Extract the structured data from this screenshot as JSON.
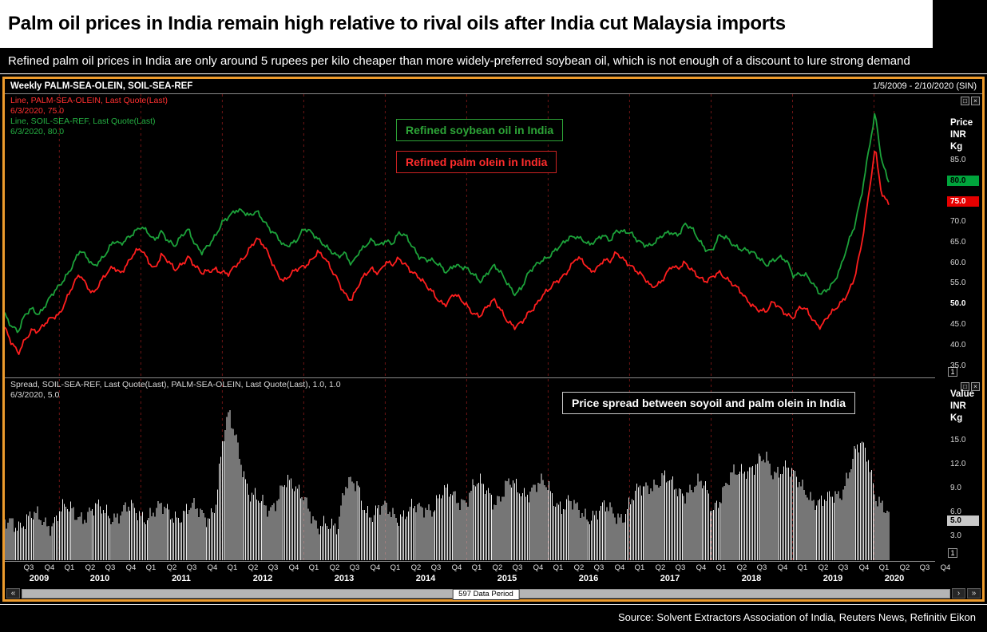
{
  "page": {
    "title": "Palm oil prices in India remain high relative to rival oils after India cut Malaysia imports",
    "subtitle": "Refined palm oil prices in India are only around 5 rupees per kilo cheaper than more widely-preferred soybean oil, which is not enough of a discount to lure strong demand",
    "footer": "Source: Solvent Extractors Association of India, Reuters News, Refinitiv Eikon"
  },
  "chart_header": {
    "left": "Weekly PALM-SEA-OLEIN, SOIL-SEA-REF",
    "right": "1/5/2009 - 2/10/2020 (SIN)"
  },
  "icons": {
    "maximize": "□",
    "close": "×"
  },
  "top_pane": {
    "legend": [
      "Line, PALM-SEA-OLEIN, Last Quote(Last)",
      "6/3/2020, 75.0",
      "Line, SOIL-SEA-REF, Last Quote(Last)",
      "6/3/2020, 80.0"
    ],
    "callout_soy": "Refined soybean oil in India",
    "callout_palm": "Refined palm olein in India",
    "axis_title": [
      "Price",
      "INR",
      "Kg"
    ],
    "pane_number": "1"
  },
  "bottom_pane": {
    "legend": [
      "Spread, SOIL-SEA-REF, Last Quote(Last), PALM-SEA-OLEIN, Last Quote(Last),  1.0, 1.0",
      "6/3/2020, 5.0"
    ],
    "callout": "Price spread between soyoil and palm olein in India",
    "axis_title": [
      "Value",
      "INR",
      "Kg"
    ],
    "pane_number": "1"
  },
  "scrollbar": {
    "label": "597 Data Period",
    "left_button": "«",
    "right_button": "›",
    "end_button": "»"
  },
  "colors": {
    "frame": "#ED9B2D",
    "grid": "#6E1414",
    "separator": "#8a8a8a",
    "palm_red": "#FF1E1E",
    "soy_green": "#1CA23A",
    "spread_bars": "#EDEDED"
  },
  "chart_data": {
    "type": "line+bar",
    "title": "Weekly PALM-SEA-OLEIN vs SOIL-SEA-REF, Price INR/Kg, 1/5/2009 - 2/10/2020",
    "x": {
      "unit": "decimal years, weekly frequency (monthly anchor values below, interpolated to weekly)",
      "axis_range": [
        2009.33,
        2020.75
      ],
      "data_end": 2020.18,
      "monthly_start": "2009-05",
      "monthly_end": "2020-03",
      "gridline_years": [
        2010,
        2011,
        2012,
        2013,
        2014,
        2015,
        2016,
        2017,
        2018,
        2019,
        2020
      ],
      "quarter_labels": [
        "Q3",
        "Q4",
        "Q1",
        "Q2",
        "Q3",
        "Q4",
        "Q1",
        "Q2",
        "Q3",
        "Q4",
        "Q1",
        "Q2",
        "Q3",
        "Q4",
        "Q1",
        "Q2",
        "Q3",
        "Q4",
        "Q1",
        "Q2",
        "Q3",
        "Q4",
        "Q1",
        "Q2",
        "Q3",
        "Q4",
        "Q1",
        "Q2",
        "Q3",
        "Q4",
        "Q1",
        "Q2",
        "Q3",
        "Q4",
        "Q1",
        "Q2",
        "Q3",
        "Q4",
        "Q1",
        "Q2",
        "Q3",
        "Q4",
        "Q1",
        "Q2",
        "Q3",
        "Q4"
      ],
      "year_labels": [
        "2009",
        "2010",
        "2011",
        "2012",
        "2013",
        "2014",
        "2015",
        "2016",
        "2017",
        "2018",
        "2019",
        "2020"
      ]
    },
    "panes": [
      {
        "type": "line",
        "ylabel": "Price INR Kg",
        "ylim": [
          32,
          101
        ],
        "yticks": [
          35,
          40,
          45,
          50,
          55,
          60,
          65,
          70,
          75,
          80,
          85
        ],
        "badges": [
          {
            "label": "80.0",
            "value": 80,
            "bg": "#00A43C",
            "fg": "#000000"
          },
          {
            "label": "75.0",
            "value": 75,
            "bg": "#E60000",
            "fg": "#FFFFFF"
          }
        ],
        "series": [
          {
            "name": "PALM-SEA-OLEIN (Refined palm olein in India)",
            "color": "#FF1E1E",
            "last": 75.0,
            "monthly_values": [
              44,
              40,
              38,
              42,
              44,
              43,
              45,
              47,
              48,
              51,
              54,
              57,
              55,
              53,
              55,
              57,
              59,
              58,
              60,
              62,
              63,
              61,
              59,
              62,
              60,
              58,
              60,
              62,
              59,
              57,
              58,
              59,
              58,
              57,
              59,
              61,
              64,
              66,
              64,
              61,
              58,
              56,
              57,
              58,
              59,
              61,
              63,
              61,
              58,
              56,
              53,
              51,
              54,
              57,
              59,
              58,
              60,
              59,
              61,
              60,
              58,
              56,
              54,
              53,
              51,
              50,
              52,
              51,
              50,
              48,
              47,
              49,
              51,
              49,
              46,
              44,
              45,
              48,
              50,
              52,
              53,
              55,
              57,
              59,
              61,
              60,
              58,
              59,
              61,
              60,
              62,
              61,
              60,
              58,
              56,
              54,
              55,
              57,
              59,
              58,
              60,
              59,
              57,
              55,
              56,
              58,
              57,
              55,
              53,
              51,
              50,
              49,
              48,
              50,
              49,
              48,
              47,
              49,
              48,
              46,
              45,
              47,
              48,
              50,
              53,
              57,
              64,
              75,
              88,
              77,
              75
            ]
          },
          {
            "name": "SOIL-SEA-REF (Refined soybean oil in India)",
            "color": "#1CA23A",
            "last": 80.0,
            "monthly_values": [
              48,
              45,
              43,
              47,
              49,
              48,
              50,
              52,
              54,
              57,
              60,
              63,
              61,
              59,
              61,
              63,
              65,
              64,
              66,
              68,
              69,
              67,
              65,
              68,
              66,
              64,
              66,
              68,
              65,
              63,
              64,
              66,
              70,
              72,
              73,
              72,
              71,
              73,
              71,
              68,
              66,
              64,
              65,
              66,
              68,
              67,
              66,
              65,
              63,
              61,
              62,
              60,
              63,
              64,
              65,
              64,
              66,
              65,
              67,
              66,
              64,
              62,
              61,
              60,
              59,
              58,
              60,
              59,
              58,
              57,
              56,
              58,
              59,
              57,
              55,
              53,
              54,
              57,
              59,
              61,
              62,
              63,
              64,
              66,
              67,
              66,
              64,
              65,
              67,
              66,
              68,
              67,
              67,
              66,
              65,
              64,
              65,
              67,
              68,
              67,
              69,
              68,
              66,
              64,
              63,
              66,
              66,
              65,
              64,
              63,
              62,
              61,
              60,
              61,
              61,
              60,
              57,
              58,
              57,
              54,
              52,
              54,
              56,
              59,
              64,
              69,
              77,
              87,
              96,
              84,
              80
            ]
          }
        ]
      },
      {
        "type": "bar",
        "ylabel": "Value INR Kg",
        "ylim": [
          0,
          23
        ],
        "yticks": [
          3,
          6,
          9,
          12,
          15
        ],
        "badges": [
          {
            "label": "5.0",
            "value": 5,
            "bg": "#C9C9C9",
            "fg": "#000000"
          }
        ],
        "series": [
          {
            "name": "Spread SOIL-SEA-REF minus PALM-SEA-OLEIN",
            "color": "#EDEDED",
            "last": 5.0,
            "monthly_values": [
              4,
              5,
              5,
              5,
              5,
              5,
              5,
              5,
              6,
              6,
              6,
              6,
              6,
              6,
              6,
              6,
              6,
              6,
              6,
              6,
              6,
              6,
              6,
              6,
              6,
              6,
              6,
              6,
              6,
              6,
              6,
              7,
              14,
              18,
              16,
              12,
              8,
              7,
              7,
              7,
              8,
              9,
              9,
              9,
              9,
              6,
              3,
              4,
              5,
              5,
              9,
              9,
              9,
              7,
              6,
              6,
              6,
              6,
              6,
              6,
              6,
              6,
              7,
              7,
              8,
              8,
              8,
              8,
              8,
              9,
              9,
              9,
              8,
              8,
              9,
              9,
              9,
              9,
              9,
              9,
              9,
              8,
              7,
              7,
              6,
              6,
              6,
              6,
              6,
              6,
              6,
              6,
              7,
              8,
              9,
              10,
              10,
              10,
              9,
              9,
              9,
              9,
              9,
              9,
              7,
              8,
              9,
              10,
              11,
              12,
              12,
              12,
              12,
              11,
              12,
              12,
              10,
              9,
              9,
              8,
              7,
              7,
              8,
              9,
              11,
              13,
              14,
              13,
              9,
              7,
              5
            ]
          }
        ]
      }
    ]
  }
}
